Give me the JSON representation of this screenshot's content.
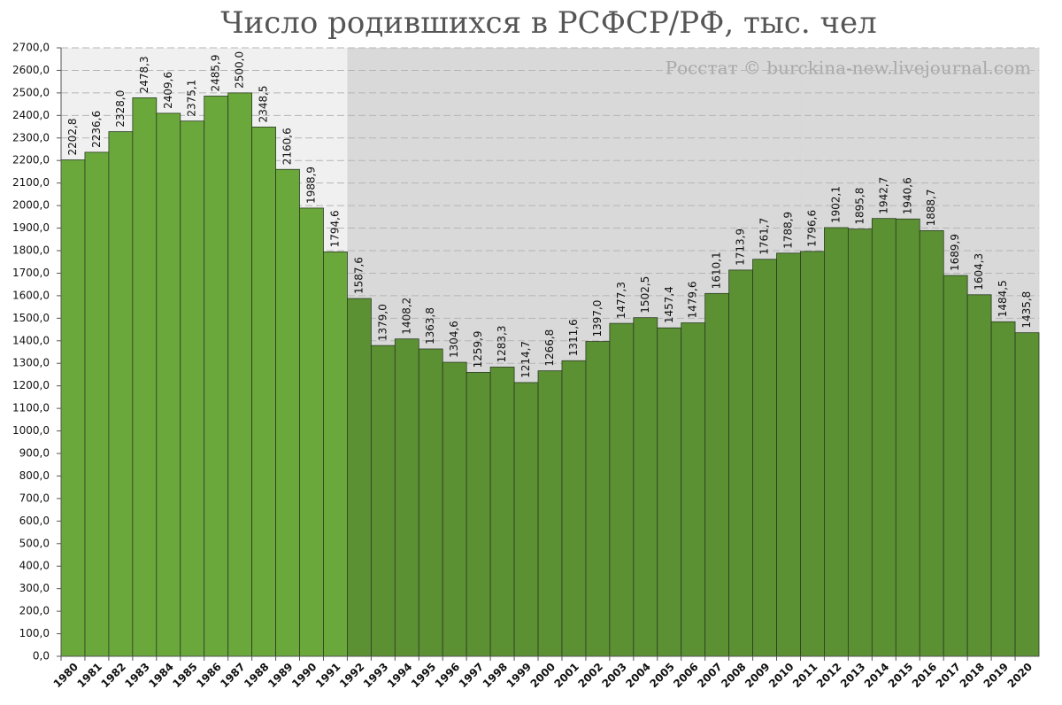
{
  "chart_data": {
    "type": "bar",
    "title": "Число родившихся в РСФСР/РФ, тыс. чел",
    "watermark": "Росстат © burckina-new.livejournal.com",
    "categories": [
      "1980",
      "1981",
      "1982",
      "1983",
      "1984",
      "1985",
      "1986",
      "1987",
      "1988",
      "1989",
      "1990",
      "1991",
      "1992",
      "1993",
      "1994",
      "1995",
      "1996",
      "1997",
      "1998",
      "1999",
      "2000",
      "2001",
      "2002",
      "2003",
      "2004",
      "2005",
      "2006",
      "2007",
      "2008",
      "2009",
      "2010",
      "2011",
      "2012",
      "2013",
      "2014",
      "2015",
      "2016",
      "2017",
      "2018",
      "2019",
      "2020"
    ],
    "values": [
      2202.8,
      2236.6,
      2328.0,
      2478.3,
      2409.6,
      2375.1,
      2485.9,
      2500.0,
      2348.5,
      2160.6,
      1988.9,
      1794.6,
      1587.6,
      1379.0,
      1408.2,
      1363.8,
      1304.6,
      1259.9,
      1283.3,
      1214.7,
      1266.8,
      1311.6,
      1397.0,
      1477.3,
      1502.5,
      1457.4,
      1479.6,
      1610.1,
      1713.9,
      1761.7,
      1788.9,
      1796.6,
      1902.1,
      1895.8,
      1942.7,
      1940.6,
      1888.7,
      1689.9,
      1604.3,
      1484.5,
      1435.8
    ],
    "value_labels": [
      "2202,8",
      "2236,6",
      "2328,0",
      "2478,3",
      "2409,6",
      "2375,1",
      "2485,9",
      "2500,0",
      "2348,5",
      "2160,6",
      "1988,9",
      "1794,6",
      "1587,6",
      "1379,0",
      "1408,2",
      "1363,8",
      "1304,6",
      "1259,9",
      "1283,3",
      "1214,7",
      "1266,8",
      "1311,6",
      "1397,0",
      "1477,3",
      "1502,5",
      "1457,4",
      "1479,6",
      "1610,1",
      "1713,9",
      "1761,7",
      "1788,9",
      "1796,6",
      "1902,1",
      "1895,8",
      "1942,7",
      "1940,6",
      "1888,7",
      "1689,9",
      "1604,3",
      "1484,5",
      "1435,8"
    ],
    "colors": [
      "#6aa83c",
      "#6aa83c",
      "#6aa83c",
      "#6aa83c",
      "#6aa83c",
      "#6aa83c",
      "#6aa83c",
      "#6aa83c",
      "#6aa83c",
      "#6aa83c",
      "#6aa83c",
      "#6aa83c",
      "#5b9133",
      "#5b9133",
      "#5b9133",
      "#5b9133",
      "#5b9133",
      "#5b9133",
      "#5b9133",
      "#5b9133",
      "#5b9133",
      "#5b9133",
      "#5b9133",
      "#5b9133",
      "#5b9133",
      "#5b9133",
      "#5b9133",
      "#5b9133",
      "#5b9133",
      "#5b9133",
      "#5b9133",
      "#5b9133",
      "#5b9133",
      "#5b9133",
      "#5b9133",
      "#5b9133",
      "#5b9133",
      "#5b9133",
      "#5b9133",
      "#5b9133",
      "#5b9133"
    ],
    "background_colors": [
      "#f0f0f0",
      "#f0f0f0",
      "#f0f0f0",
      "#f0f0f0",
      "#f0f0f0",
      "#f0f0f0",
      "#f0f0f0",
      "#f0f0f0",
      "#f0f0f0",
      "#f0f0f0",
      "#f0f0f0",
      "#f0f0f0",
      "#d9d9d9",
      "#d9d9d9",
      "#d9d9d9",
      "#d9d9d9",
      "#d9d9d9",
      "#d9d9d9",
      "#d9d9d9",
      "#d9d9d9",
      "#d9d9d9",
      "#d9d9d9",
      "#d9d9d9",
      "#d9d9d9",
      "#d9d9d9",
      "#d9d9d9",
      "#d9d9d9",
      "#d9d9d9",
      "#d9d9d9",
      "#d9d9d9",
      "#d9d9d9",
      "#d9d9d9",
      "#d9d9d9",
      "#d9d9d9",
      "#d9d9d9",
      "#d9d9d9",
      "#d9d9d9",
      "#d9d9d9",
      "#d9d9d9",
      "#d9d9d9",
      "#d9d9d9"
    ],
    "ylim": [
      0,
      2700
    ],
    "yticks": [
      {
        "value": 0,
        "label": "0,0"
      },
      {
        "value": 100,
        "label": "100,0"
      },
      {
        "value": 200,
        "label": "200,0"
      },
      {
        "value": 300,
        "label": "300,0"
      },
      {
        "value": 400,
        "label": "400,0"
      },
      {
        "value": 500,
        "label": "500,0"
      },
      {
        "value": 600,
        "label": "600,0"
      },
      {
        "value": 700,
        "label": "700,0"
      },
      {
        "value": 800,
        "label": "800,0"
      },
      {
        "value": 900,
        "label": "900,0"
      },
      {
        "value": 1000,
        "label": "1000,0"
      },
      {
        "value": 1100,
        "label": "1100,0"
      },
      {
        "value": 1200,
        "label": "1200,0"
      },
      {
        "value": 1300,
        "label": "1300,0"
      },
      {
        "value": 1400,
        "label": "1400,0"
      },
      {
        "value": 1500,
        "label": "1500,0"
      },
      {
        "value": 1600,
        "label": "1600,0"
      },
      {
        "value": 1700,
        "label": "1700,0"
      },
      {
        "value": 1800,
        "label": "1800,0"
      },
      {
        "value": 1900,
        "label": "1900,0"
      },
      {
        "value": 2000,
        "label": "2000,0"
      },
      {
        "value": 2100,
        "label": "2100,0"
      },
      {
        "value": 2200,
        "label": "2200,0"
      },
      {
        "value": 2300,
        "label": "2300,0"
      },
      {
        "value": 2400,
        "label": "2400,0"
      },
      {
        "value": 2500,
        "label": "2500,0"
      },
      {
        "value": 2600,
        "label": "2600,0"
      },
      {
        "value": 2700,
        "label": "2700,0"
      }
    ],
    "grid": true
  }
}
